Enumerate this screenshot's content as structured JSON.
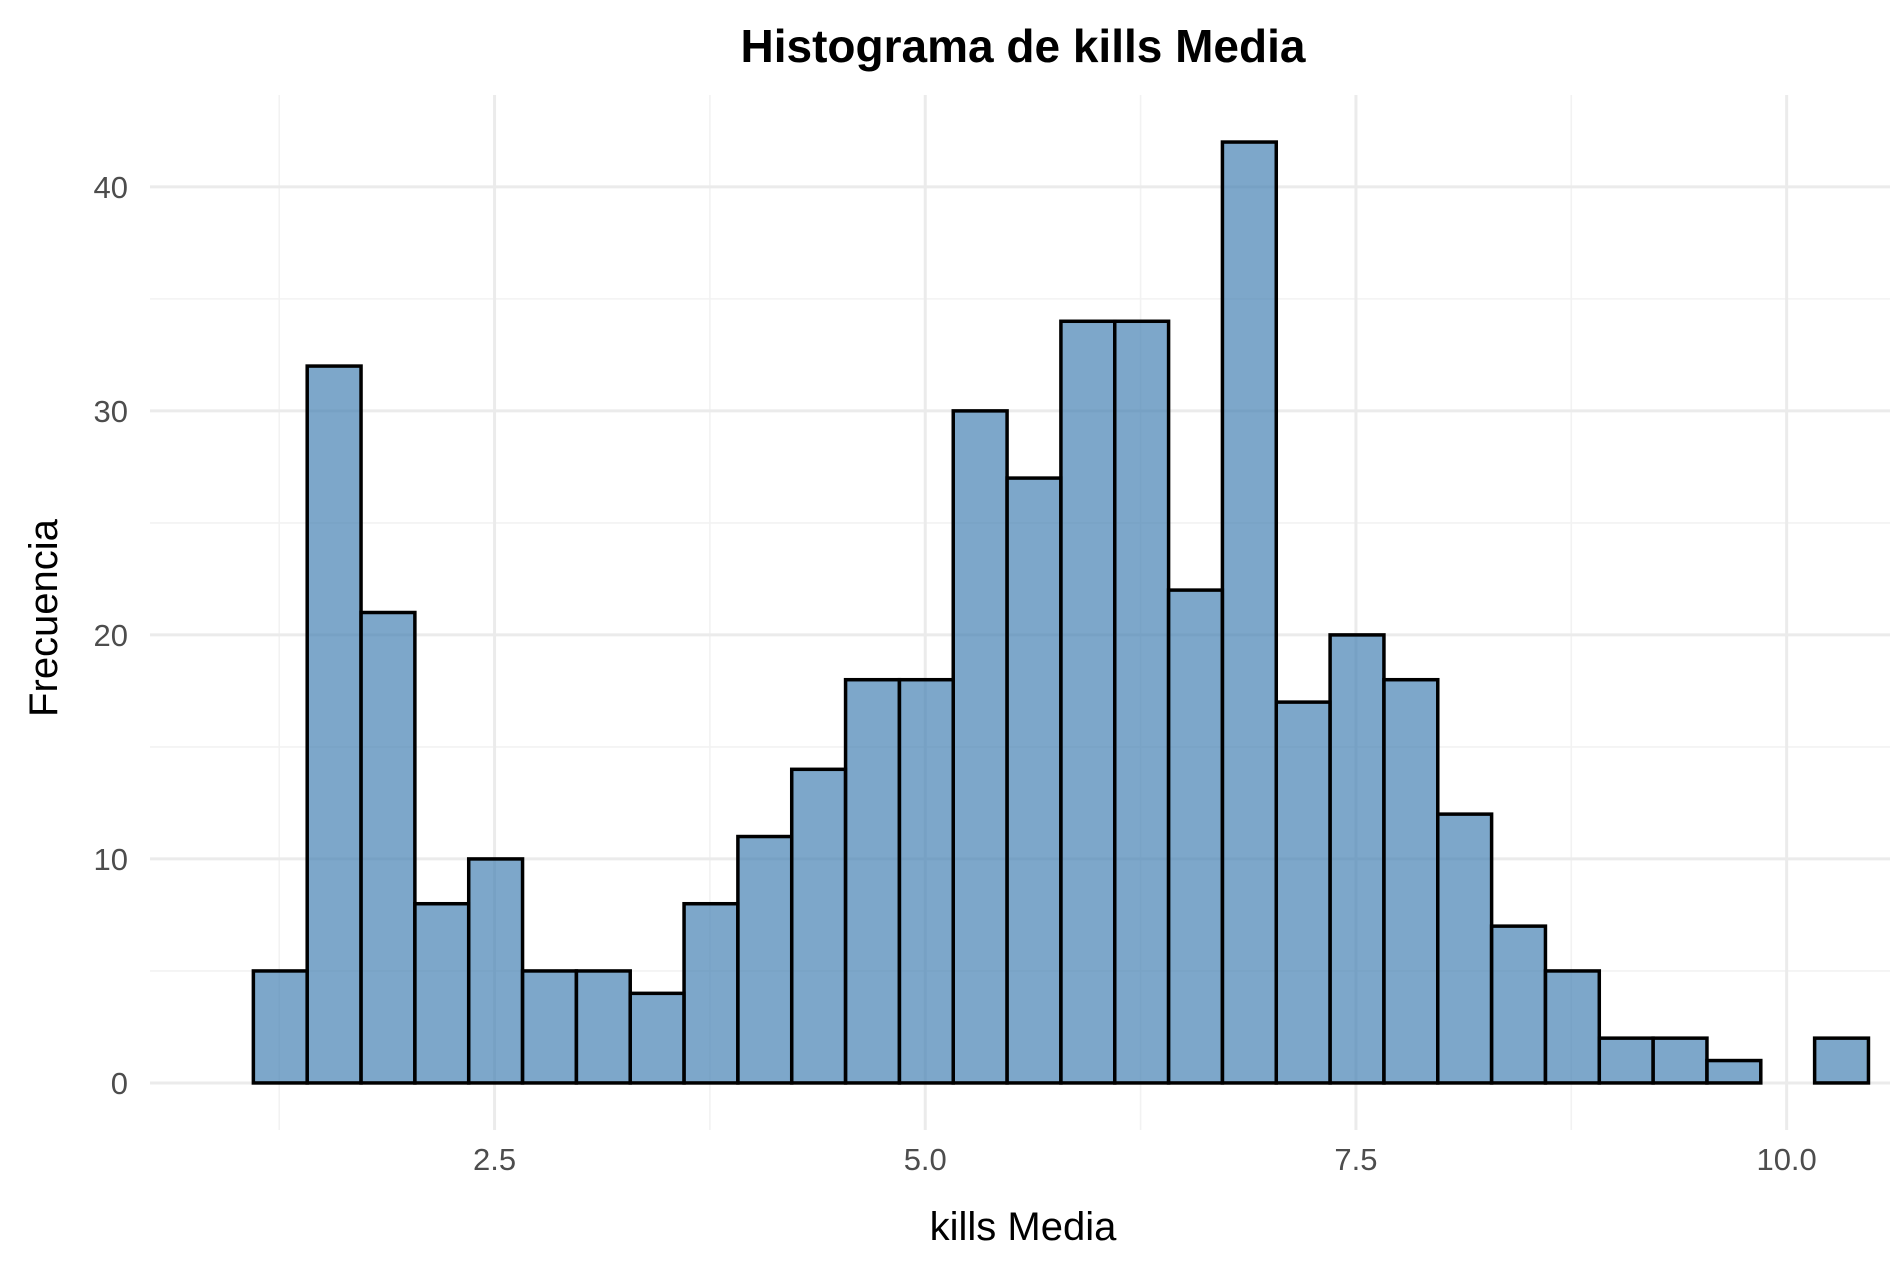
{
  "chart_data": {
    "type": "bar",
    "title": "Histograma de kills Media",
    "xlabel": "kills Media",
    "ylabel": "Frecuencia",
    "bin_width": 0.3125,
    "first_bin_start": 1.1,
    "values": [
      5,
      32,
      21,
      8,
      10,
      5,
      5,
      4,
      8,
      11,
      14,
      18,
      18,
      30,
      27,
      34,
      34,
      22,
      42,
      17,
      20,
      18,
      12,
      7,
      5,
      2,
      2,
      1,
      0,
      2
    ],
    "xlim": [
      0.5,
      10.6
    ],
    "ylim": [
      -2.1,
      44.1
    ],
    "x_ticks": [
      2.5,
      5.0,
      7.5,
      10.0
    ],
    "x_tick_labels": [
      "2.5",
      "5.0",
      "7.5",
      "10.0"
    ],
    "y_ticks": [
      0,
      10,
      20,
      30,
      40
    ],
    "y_tick_labels": [
      "0",
      "10",
      "20",
      "30",
      "40"
    ],
    "x_minor_ticks": [
      1.25,
      3.75,
      6.25,
      8.75
    ],
    "y_minor_ticks": [
      5,
      15,
      25,
      35
    ],
    "grid": true,
    "bar_fill": "#4682b4",
    "bar_fill_opacity": 0.7,
    "bar_stroke": "#000000"
  }
}
